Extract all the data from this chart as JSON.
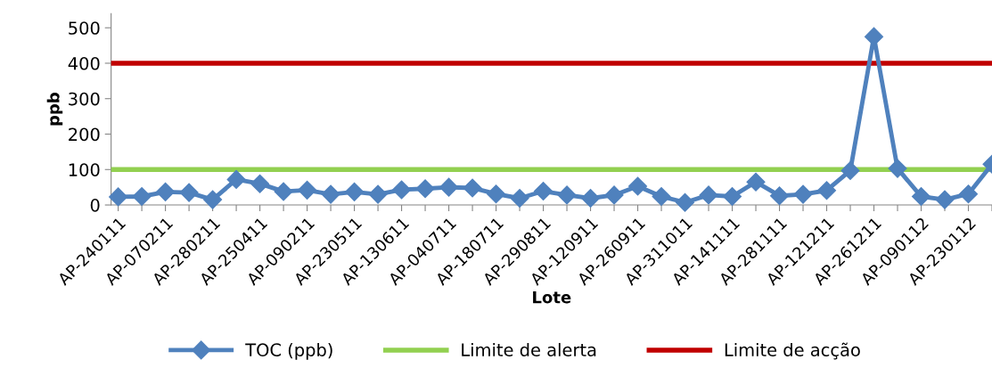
{
  "chart_data": {
    "type": "line",
    "xlabel": "Lote",
    "ylabel": "ppb",
    "categories": [
      "AP-240111",
      null,
      "AP-070211",
      null,
      "AP-280211",
      null,
      "AP-250411",
      null,
      "AP-090211",
      null,
      "AP-230511",
      null,
      "AP-130611",
      null,
      "AP-040711",
      null,
      "AP-180711",
      null,
      "AP-290811",
      null,
      "AP-120911",
      null,
      "AP-260911",
      null,
      "AP-311011",
      null,
      "AP-141111",
      null,
      "AP-281111",
      null,
      "AP-121211",
      null,
      "AP-261211",
      null,
      "AP-090112",
      null,
      "AP-230112",
      null
    ],
    "series": [
      {
        "name": "TOC (ppb)",
        "color": "#4f81bd",
        "values": [
          23,
          24,
          37,
          35,
          15,
          72,
          60,
          38,
          42,
          30,
          37,
          30,
          43,
          46,
          50,
          48,
          31,
          19,
          39,
          28,
          19,
          28,
          53,
          24,
          7,
          28,
          24,
          65,
          26,
          30,
          41,
          97,
          475,
          103,
          24,
          15,
          31,
          115
        ]
      }
    ],
    "ref_lines": [
      {
        "axis": "y",
        "value": 100,
        "label": "Limite de alerta",
        "color": "#92d050"
      },
      {
        "axis": "y",
        "value": 400,
        "label": "Limite de acção",
        "color": "#c00000"
      }
    ],
    "ylim": [
      0,
      540
    ],
    "yticks": [
      0,
      100,
      200,
      300,
      400,
      500
    ],
    "marker": "diamond",
    "line_style": "solid",
    "grid": false,
    "legend": "bottom"
  }
}
